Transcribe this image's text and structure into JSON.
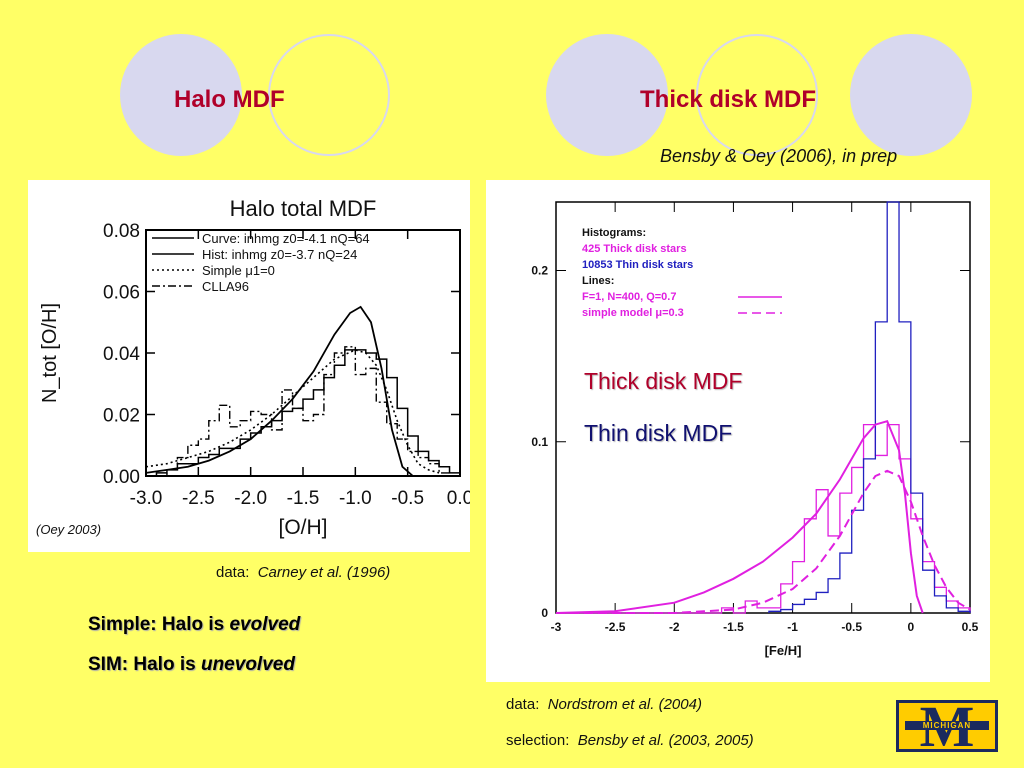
{
  "slide": {
    "title_left": "Halo MDF",
    "title_right": "Thick disk MDF",
    "citation_top": "Bensby & Oey (2006), in prep",
    "oey_caption": "(Oey 2003)",
    "left_data_prefix": "data:",
    "left_data_source": "Carney et al. (1996)",
    "simple_prefix": "Simple:  Halo is ",
    "simple_emph": "evolved",
    "sim_prefix": "SIM:   Halo is ",
    "sim_emph": "unevolved",
    "right_data_prefix": "data:",
    "right_data_source": "Nordstrom et al. (2004)",
    "selection_prefix": "selection:",
    "selection_source": "Bensby et al. (2003, 2005)",
    "logo_text": "MICHIGAN",
    "logo_letter": "M",
    "overlay_thick": "Thick disk MDF",
    "overlay_thin": "Thin disk MDF",
    "colors": {
      "background": "#ffff66",
      "title": "#b0002a",
      "magenta": "#e020e0",
      "blue": "#2020c0"
    }
  },
  "chart_data": [
    {
      "type": "line",
      "title": "Halo total MDF",
      "xlabel": "[O/H]",
      "ylabel": "N_tot [O/H]",
      "xlim": [
        -3.0,
        0.0
      ],
      "ylim": [
        0.0,
        0.08
      ],
      "xticks": [
        "-3.0",
        "-2.5",
        "-2.0",
        "-1.5",
        "-1.0",
        "-0.5",
        "0.0"
      ],
      "yticks": [
        "0.00",
        "0.02",
        "0.04",
        "0.06",
        "0.08"
      ],
      "legend": [
        "Curve: inhmg z0=-4.1 nQ=64",
        "Hist: inhmg z0=-3.7 nQ=24",
        "Simple  μ1=0",
        "CLLA96"
      ],
      "series": [
        {
          "name": "Curve: inhmg z0=-4.1 nQ=64",
          "style": "solid",
          "x": [
            -3.0,
            -2.8,
            -2.6,
            -2.4,
            -2.2,
            -2.0,
            -1.8,
            -1.6,
            -1.4,
            -1.2,
            -1.05,
            -0.95,
            -0.85,
            -0.75,
            -0.65,
            -0.55,
            -0.45
          ],
          "y": [
            0.001,
            0.002,
            0.003,
            0.005,
            0.008,
            0.012,
            0.018,
            0.025,
            0.034,
            0.046,
            0.053,
            0.055,
            0.05,
            0.035,
            0.015,
            0.003,
            0.0
          ]
        },
        {
          "name": "Hist: inhmg z0=-3.7 nQ=24",
          "style": "step",
          "x": [
            -3.0,
            -2.9,
            -2.8,
            -2.7,
            -2.6,
            -2.5,
            -2.4,
            -2.3,
            -2.2,
            -2.1,
            -2.0,
            -1.9,
            -1.8,
            -1.7,
            -1.6,
            -1.5,
            -1.4,
            -1.3,
            -1.2,
            -1.1,
            -1.0,
            -0.9,
            -0.8,
            -0.7,
            -0.6,
            -0.5,
            -0.4,
            -0.3,
            -0.2,
            -0.1
          ],
          "y": [
            0.0,
            0.001,
            0.002,
            0.004,
            0.004,
            0.006,
            0.007,
            0.009,
            0.009,
            0.012,
            0.014,
            0.016,
            0.018,
            0.021,
            0.022,
            0.025,
            0.028,
            0.032,
            0.036,
            0.041,
            0.041,
            0.04,
            0.038,
            0.032,
            0.022,
            0.013,
            0.008,
            0.005,
            0.003,
            0.001
          ]
        },
        {
          "name": "Simple  μ1=0",
          "style": "dotted",
          "x": [
            -3.0,
            -2.8,
            -2.6,
            -2.4,
            -2.2,
            -2.0,
            -1.8,
            -1.6,
            -1.4,
            -1.2,
            -1.0,
            -0.9,
            -0.8,
            -0.7,
            -0.6,
            -0.5,
            -0.4,
            -0.3,
            -0.2
          ],
          "y": [
            0.003,
            0.004,
            0.006,
            0.008,
            0.011,
            0.015,
            0.02,
            0.026,
            0.032,
            0.038,
            0.041,
            0.04,
            0.036,
            0.028,
            0.018,
            0.01,
            0.004,
            0.002,
            0.001
          ]
        },
        {
          "name": "CLLA96",
          "style": "dashdot",
          "x": [
            -3.0,
            -2.9,
            -2.8,
            -2.7,
            -2.6,
            -2.5,
            -2.4,
            -2.3,
            -2.2,
            -2.1,
            -2.0,
            -1.9,
            -1.8,
            -1.7,
            -1.6,
            -1.5,
            -1.4,
            -1.3,
            -1.2,
            -1.1,
            -1.0,
            -0.9,
            -0.8,
            -0.7,
            -0.6,
            -0.5,
            -0.4,
            -0.3,
            -0.2,
            -0.1
          ],
          "y": [
            0.0,
            0.0,
            0.002,
            0.006,
            0.01,
            0.012,
            0.018,
            0.023,
            0.016,
            0.018,
            0.021,
            0.02,
            0.015,
            0.028,
            0.022,
            0.018,
            0.02,
            0.033,
            0.04,
            0.042,
            0.033,
            0.035,
            0.024,
            0.017,
            0.012,
            0.008,
            0.006,
            0.004,
            0.001,
            0.0
          ]
        }
      ]
    },
    {
      "type": "line",
      "xlabel": "[Fe/H]",
      "ylabel": "",
      "xlim": [
        -3.0,
        0.5
      ],
      "ylim": [
        0.0,
        0.24
      ],
      "xticks": [
        "-3",
        "-2.5",
        "-2",
        "-1.5",
        "-1",
        "-0.5",
        "0",
        "0.5"
      ],
      "yticks": [
        "0",
        "0.1",
        "0.2"
      ],
      "legend_heading": "Histograms:",
      "legend_lines_heading": "Lines:",
      "legend": [
        "425 Thick disk stars",
        "10853 Thin disk stars",
        "F=1, N=400, Q=0.7",
        "simple model μ=0.3"
      ],
      "series": [
        {
          "name": "425 Thick disk stars",
          "style": "step",
          "color": "#e020e0",
          "x": [
            -3.0,
            -2.9,
            -2.8,
            -2.7,
            -2.6,
            -2.5,
            -2.4,
            -2.3,
            -2.2,
            -2.1,
            -2.0,
            -1.9,
            -1.8,
            -1.7,
            -1.6,
            -1.5,
            -1.4,
            -1.3,
            -1.2,
            -1.1,
            -1.0,
            -0.9,
            -0.8,
            -0.7,
            -0.6,
            -0.5,
            -0.4,
            -0.3,
            -0.2,
            -0.1,
            0.0,
            0.1,
            0.2,
            0.3,
            0.4
          ],
          "y": [
            0.0,
            0.0,
            0.0,
            0.0,
            0.0,
            0.0,
            0.0,
            0.0,
            0.0,
            0.0,
            0.0,
            0.0,
            0.0,
            0.0,
            0.003,
            0.0,
            0.007,
            0.003,
            0.003,
            0.017,
            0.03,
            0.055,
            0.072,
            0.045,
            0.07,
            0.085,
            0.11,
            0.092,
            0.11,
            0.09,
            0.055,
            0.03,
            0.015,
            0.007,
            0.003
          ]
        },
        {
          "name": "10853 Thin disk stars",
          "style": "step",
          "color": "#2020c0",
          "x": [
            -1.2,
            -1.1,
            -1.0,
            -0.9,
            -0.8,
            -0.7,
            -0.6,
            -0.5,
            -0.4,
            -0.3,
            -0.2,
            -0.1,
            0.0,
            0.1,
            0.2,
            0.3,
            0.4
          ],
          "y": [
            0.001,
            0.002,
            0.005,
            0.008,
            0.012,
            0.02,
            0.035,
            0.06,
            0.09,
            0.17,
            0.24,
            0.17,
            0.07,
            0.025,
            0.01,
            0.003,
            0.001
          ]
        },
        {
          "name": "F=1, N=400, Q=0.7",
          "style": "solid",
          "color": "#e020e0",
          "x": [
            -3.0,
            -2.5,
            -2.0,
            -1.75,
            -1.5,
            -1.25,
            -1.0,
            -0.8,
            -0.6,
            -0.4,
            -0.3,
            -0.2,
            -0.1,
            -0.05,
            0.0,
            0.05,
            0.1
          ],
          "y": [
            0.0,
            0.001,
            0.006,
            0.012,
            0.02,
            0.03,
            0.044,
            0.058,
            0.078,
            0.102,
            0.11,
            0.112,
            0.095,
            0.07,
            0.035,
            0.01,
            0.0
          ]
        },
        {
          "name": "simple model μ=0.3",
          "style": "dashed",
          "color": "#e020e0",
          "x": [
            -3.0,
            -2.5,
            -2.0,
            -1.75,
            -1.5,
            -1.25,
            -1.0,
            -0.8,
            -0.6,
            -0.4,
            -0.3,
            -0.2,
            -0.1,
            0.0,
            0.1,
            0.2,
            0.3,
            0.4,
            0.5
          ],
          "y": [
            0.0,
            0.0,
            0.0,
            0.001,
            0.002,
            0.006,
            0.014,
            0.026,
            0.045,
            0.07,
            0.08,
            0.083,
            0.08,
            0.065,
            0.045,
            0.028,
            0.015,
            0.006,
            0.002
          ]
        }
      ]
    }
  ]
}
